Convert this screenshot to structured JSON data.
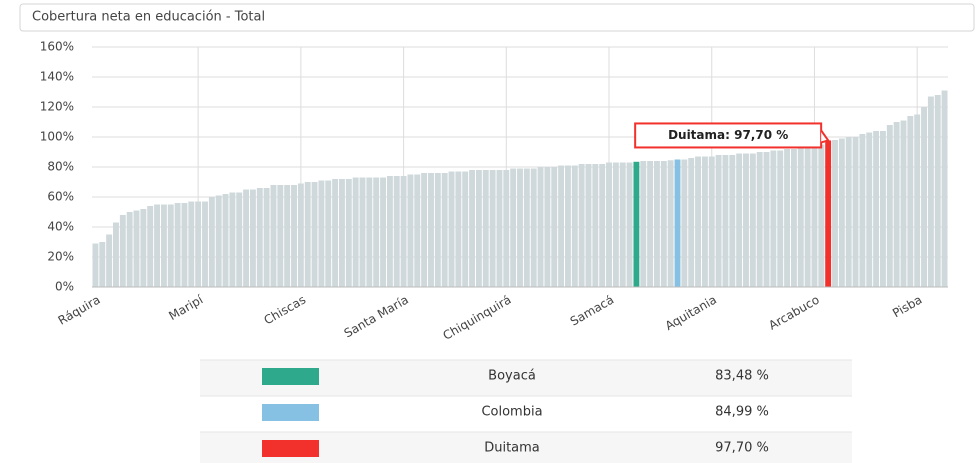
{
  "chart_data": {
    "type": "bar",
    "title": "Cobertura neta en educación - Total",
    "categories": [
      "Ráquira",
      null,
      null,
      null,
      null,
      null,
      null,
      null,
      null,
      null,
      null,
      null,
      null,
      null,
      null,
      "Maripí",
      null,
      null,
      null,
      null,
      null,
      null,
      null,
      null,
      null,
      null,
      null,
      null,
      null,
      null,
      "Chiscas",
      null,
      null,
      null,
      null,
      null,
      null,
      null,
      null,
      null,
      null,
      null,
      null,
      null,
      null,
      "Santa María",
      null,
      null,
      null,
      null,
      null,
      null,
      null,
      null,
      null,
      null,
      null,
      null,
      null,
      null,
      "Chiquinquirá",
      null,
      null,
      null,
      null,
      null,
      null,
      null,
      null,
      null,
      null,
      null,
      null,
      null,
      null,
      "Samacá",
      null,
      null,
      null,
      null,
      null,
      null,
      null,
      null,
      null,
      null,
      null,
      null,
      null,
      null,
      "Aquitania",
      null,
      null,
      null,
      null,
      null,
      null,
      null,
      null,
      null,
      null,
      null,
      null,
      null,
      null,
      "Arcabuco",
      null,
      null,
      null,
      null,
      null,
      null,
      null,
      null,
      null,
      null,
      null,
      null,
      null,
      null,
      "Pisba",
      null,
      null,
      null,
      null
    ],
    "values": [
      29,
      30,
      35,
      43,
      48,
      50,
      51,
      52,
      54,
      55,
      55,
      55,
      56,
      56,
      57,
      57,
      57,
      60,
      61,
      62,
      63,
      63,
      65,
      65,
      66,
      66,
      68,
      68,
      68,
      68,
      69,
      70,
      70,
      71,
      71,
      72,
      72,
      72,
      73,
      73,
      73,
      73,
      73,
      74,
      74,
      74,
      75,
      75,
      76,
      76,
      76,
      76,
      77,
      77,
      77,
      78,
      78,
      78,
      78,
      78,
      78,
      79,
      79,
      79,
      79,
      80,
      80,
      80,
      81,
      81,
      81,
      82,
      82,
      82,
      82,
      83,
      83,
      83,
      83,
      83.48,
      84,
      84,
      84,
      84,
      84.5,
      84.99,
      85,
      86,
      87,
      87,
      87,
      88,
      88,
      88,
      89,
      89,
      89,
      90,
      90,
      91,
      91,
      92,
      92,
      93,
      93,
      94,
      95,
      97.7,
      98,
      99,
      100,
      100,
      102,
      103,
      104,
      104,
      108,
      110,
      111,
      114,
      115,
      120,
      127,
      128,
      131
    ],
    "color": "#cfd8da",
    "ylim": [
      0,
      160
    ],
    "yticks": [
      {
        "value": 0,
        "label": "0%"
      },
      {
        "value": 20,
        "label": "20%"
      },
      {
        "value": 40,
        "label": "40%"
      },
      {
        "value": 60,
        "label": "60%"
      },
      {
        "value": 80,
        "label": "80%"
      },
      {
        "value": 100,
        "label": "100%"
      },
      {
        "value": 120,
        "label": "120%"
      },
      {
        "value": 140,
        "label": "140%"
      },
      {
        "value": 160,
        "label": "160%"
      }
    ],
    "grid": true,
    "annotation": "Duitama: 97,70 %",
    "highlights": [
      {
        "name": "Boyacá",
        "color": "#2fa98c",
        "index": 79,
        "value_label": "83,48 %"
      },
      {
        "name": "Colombia",
        "color": "#86c0e2",
        "index": 85,
        "value_label": "84,99 %"
      },
      {
        "name": "Duitama",
        "color": "#f2302c",
        "index": 107,
        "value_label": "97,70 %"
      }
    ]
  }
}
